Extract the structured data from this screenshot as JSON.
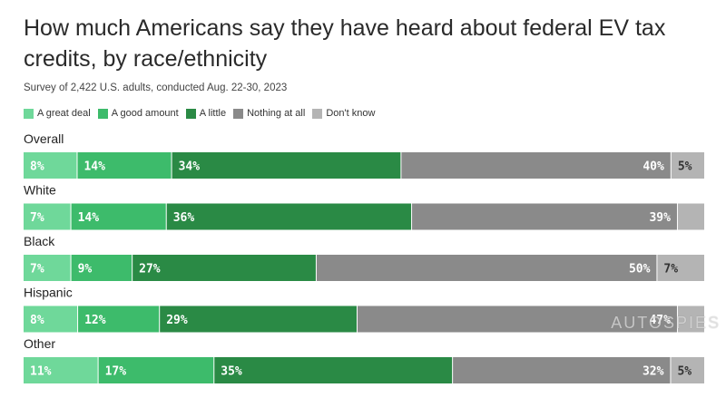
{
  "title": "How much Americans say they have heard about federal EV tax credits, by race/ethnicity",
  "subtitle": "Survey of 2,422 U.S. adults, conducted Aug. 22-30, 2023",
  "watermark": "AUTOSPIES",
  "colors": {
    "a_great_deal": "#6fd89a",
    "a_good_amount": "#3dbb6b",
    "a_little": "#2a8a45",
    "nothing_at_all": "#8a8a8a",
    "dont_know": "#b4b4b4",
    "label_text": "#ffffff"
  },
  "legend": [
    {
      "label": "A great deal",
      "color": "#6fd89a"
    },
    {
      "label": "A good amount",
      "color": "#3dbb6b"
    },
    {
      "label": "A little",
      "color": "#2a8a45"
    },
    {
      "label": "Nothing at all",
      "color": "#8a8a8a"
    },
    {
      "label": "Don't know",
      "color": "#b4b4b4"
    }
  ],
  "chart_data": {
    "type": "bar",
    "orientation": "horizontal-stacked-100",
    "title": "How much Americans say they have heard about federal EV tax credits, by race/ethnicity",
    "subtitle": "Survey of 2,422 U.S. adults, conducted Aug. 22-30, 2023",
    "categories": [
      "Overall",
      "White",
      "Black",
      "Hispanic",
      "Other"
    ],
    "series": [
      {
        "name": "A great deal",
        "values": [
          8,
          7,
          7,
          8,
          11
        ],
        "labels": [
          "8%",
          "7%",
          "7%",
          "8%",
          "11%"
        ]
      },
      {
        "name": "A good amount",
        "values": [
          14,
          14,
          9,
          12,
          17
        ],
        "labels": [
          "14%",
          "14%",
          "9%",
          "12%",
          "17%"
        ]
      },
      {
        "name": "A little",
        "values": [
          34,
          36,
          27,
          29,
          35
        ],
        "labels": [
          "34%",
          "36%",
          "27%",
          "29%",
          "35%"
        ]
      },
      {
        "name": "Nothing at all",
        "values": [
          40,
          39,
          50,
          47,
          32
        ],
        "labels": [
          "40%",
          "39%",
          "50%",
          "47%",
          "32%"
        ]
      },
      {
        "name": "Don't know",
        "values": [
          5,
          4,
          7,
          4,
          5
        ],
        "labels": [
          "5%",
          "",
          "7%",
          "",
          "5%"
        ]
      }
    ],
    "xlim": [
      0,
      100
    ],
    "legend_position": "top-left",
    "grid": false
  }
}
